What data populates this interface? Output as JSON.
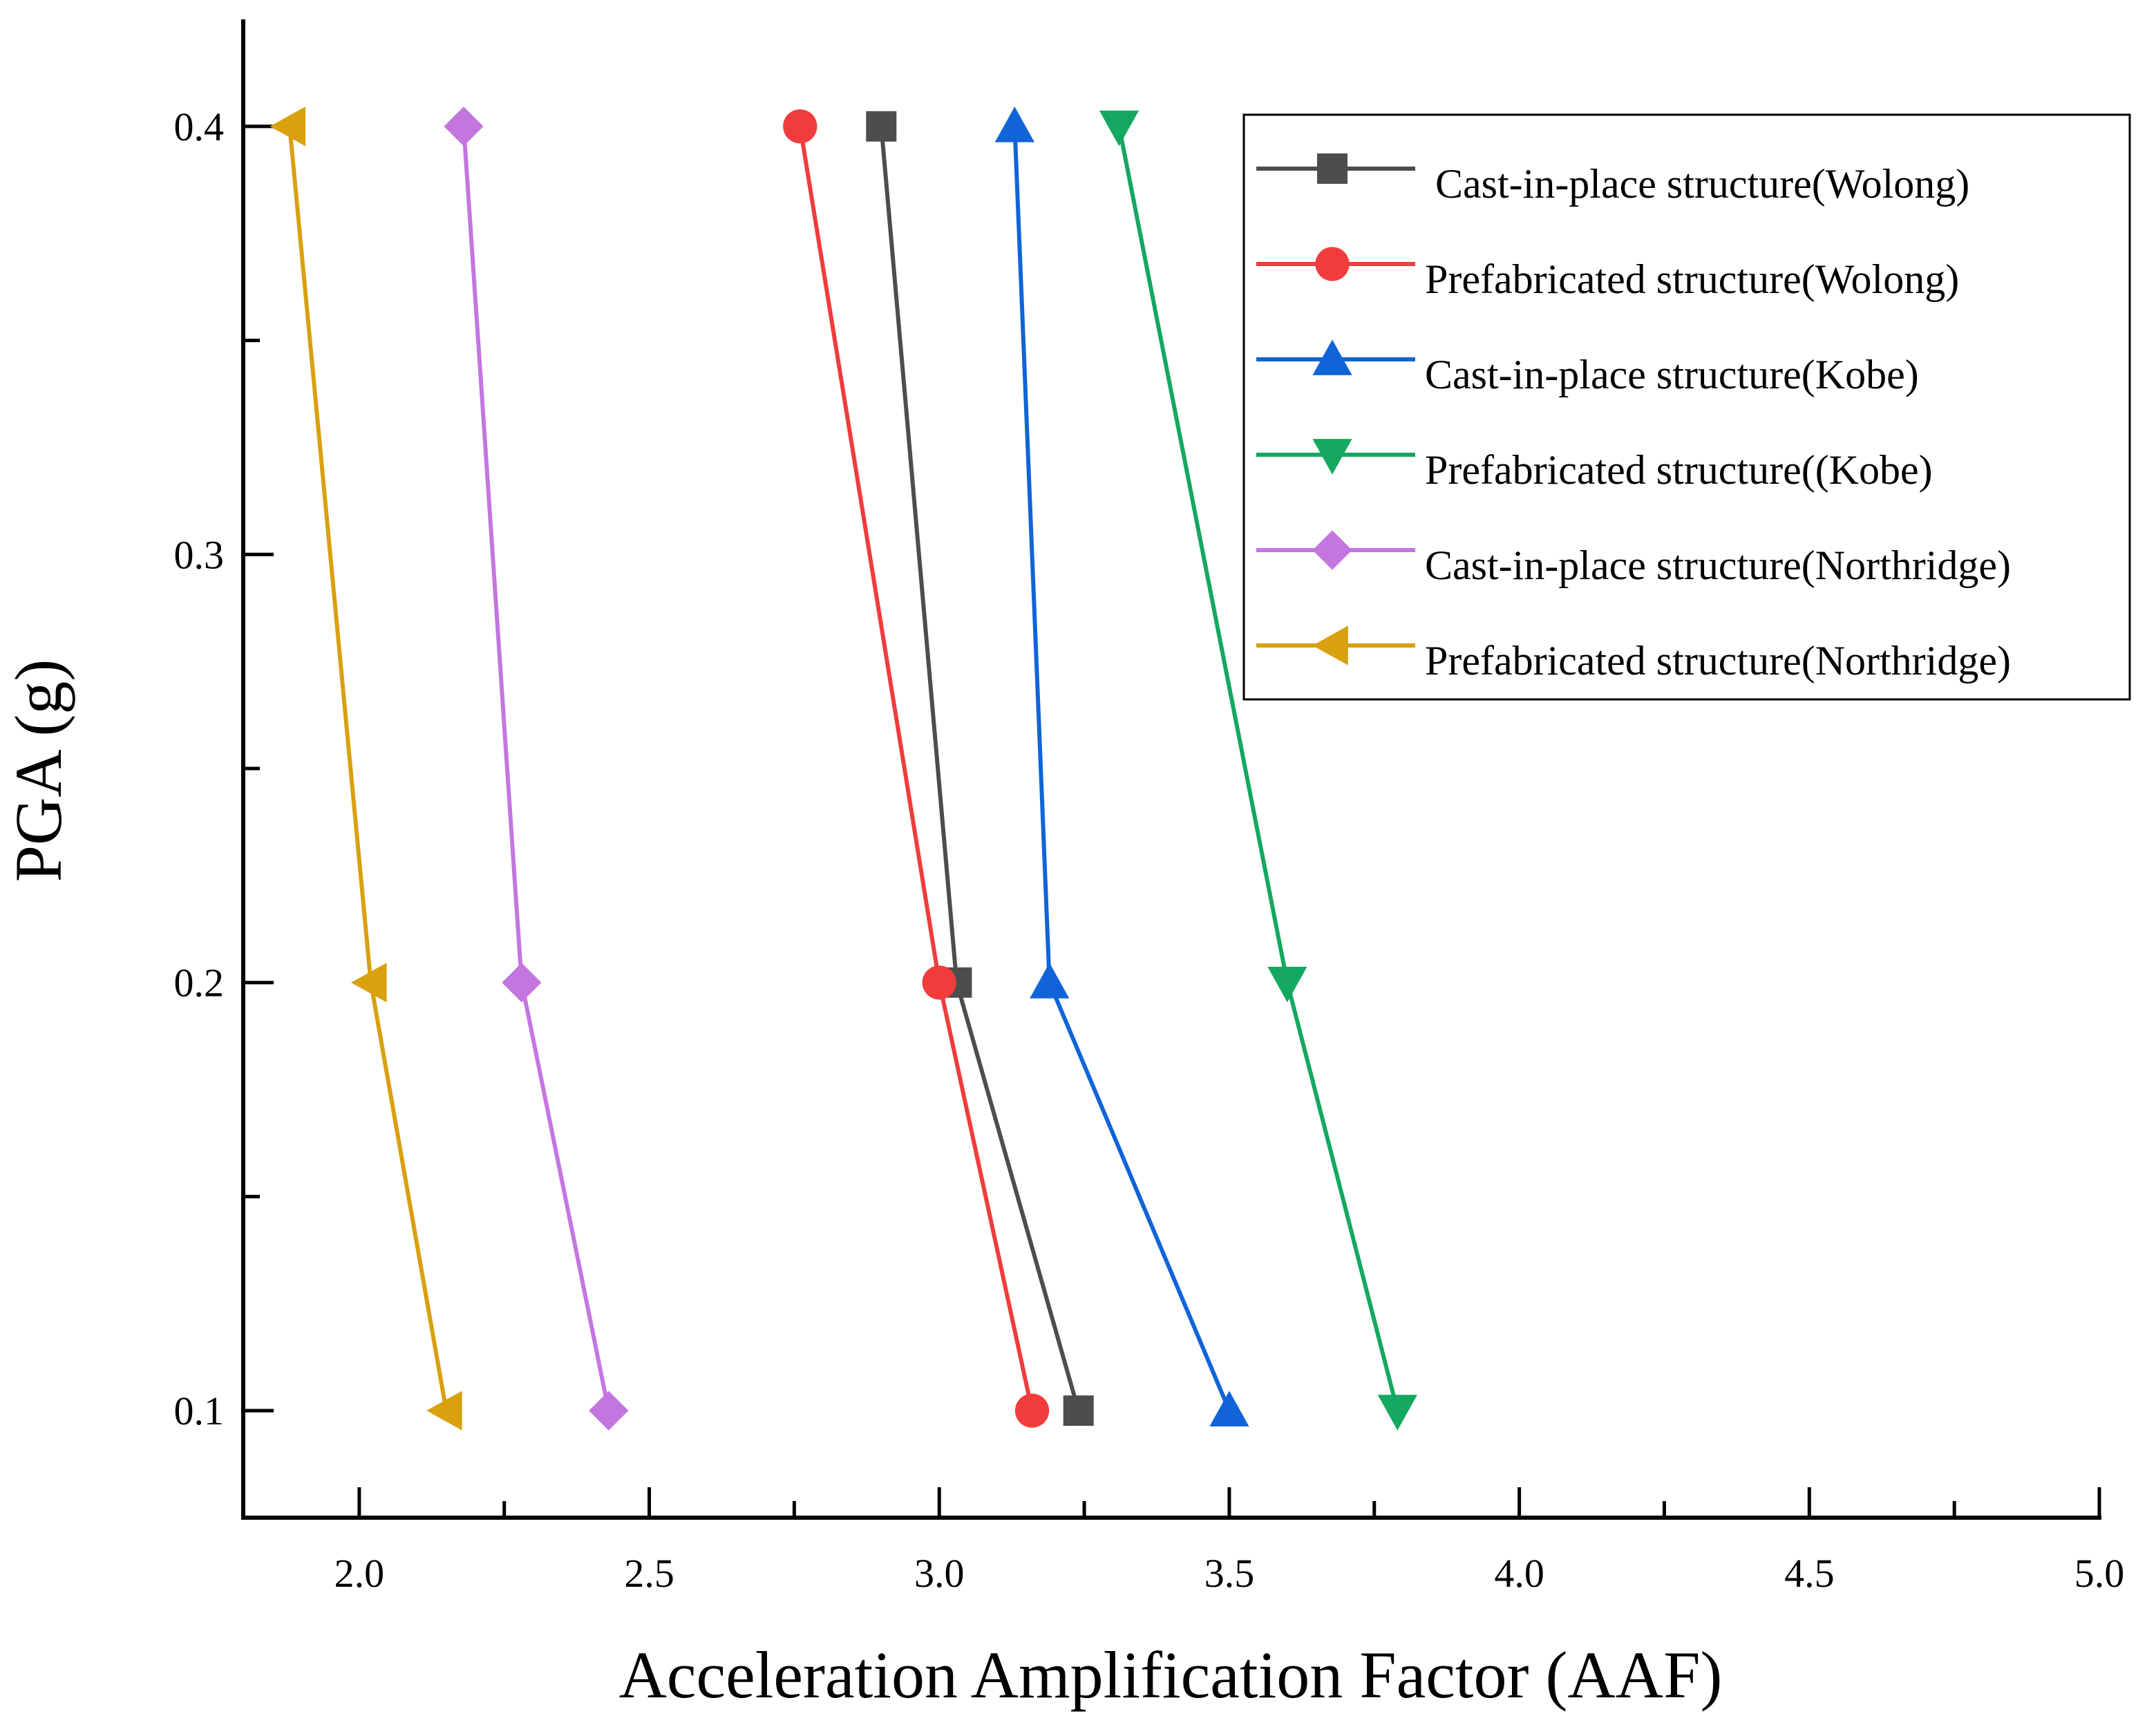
{
  "chart_data": {
    "type": "line",
    "orientation": "x-value-vs-y-pga",
    "title": "",
    "xlabel": "Acceleration Amplification Factor (AAF)",
    "ylabel": "PGA (g)",
    "xlim": [
      1.8,
      5.0
    ],
    "ylim": [
      0.075,
      0.425
    ],
    "xticks": [
      2.0,
      2.5,
      3.0,
      3.5,
      4.0,
      4.5,
      5.0
    ],
    "xtick_labels": [
      "2.0",
      "2.5",
      "3.0",
      "3.5",
      "4.0",
      "4.5",
      "5.0"
    ],
    "xminor": [
      2.25,
      2.75,
      3.25,
      3.75,
      4.25,
      4.75
    ],
    "yticks": [
      0.1,
      0.2,
      0.3,
      0.4
    ],
    "ytick_labels": [
      "0.1",
      "0.2",
      "0.3",
      "0.4"
    ],
    "yminor": [
      0.15,
      0.25,
      0.35
    ],
    "grid": false,
    "legend_position": "top-right",
    "y": [
      0.1,
      0.2,
      0.4
    ],
    "series": [
      {
        "name": " Cast-in-place structure(Wolong)",
        "x": [
          3.24,
          3.03,
          2.9
        ],
        "color": "#4d4d4d",
        "marker": "square"
      },
      {
        "name": "Prefabricated structure(Wolong)",
        "x": [
          3.16,
          3.0,
          2.76
        ],
        "color": "#f03c3c",
        "marker": "circle"
      },
      {
        "name": "Cast-in-place structure(Kobe)",
        "x": [
          3.5,
          3.19,
          3.13
        ],
        "color": "#1064d8",
        "marker": "triangle-up"
      },
      {
        "name": "Prefabricated structure((Kobe)",
        "x": [
          3.79,
          3.6,
          3.31
        ],
        "color": "#14a860",
        "marker": "triangle-down"
      },
      {
        "name": "Cast-in-place structure(Northridge)",
        "x": [
          2.43,
          2.28,
          2.18
        ],
        "color": "#c476e0",
        "marker": "diamond"
      },
      {
        "name": "Prefabricated structure(Northridge)",
        "x": [
          2.15,
          2.02,
          1.88
        ],
        "color": "#d9a00f",
        "marker": "triangle-left"
      }
    ]
  }
}
